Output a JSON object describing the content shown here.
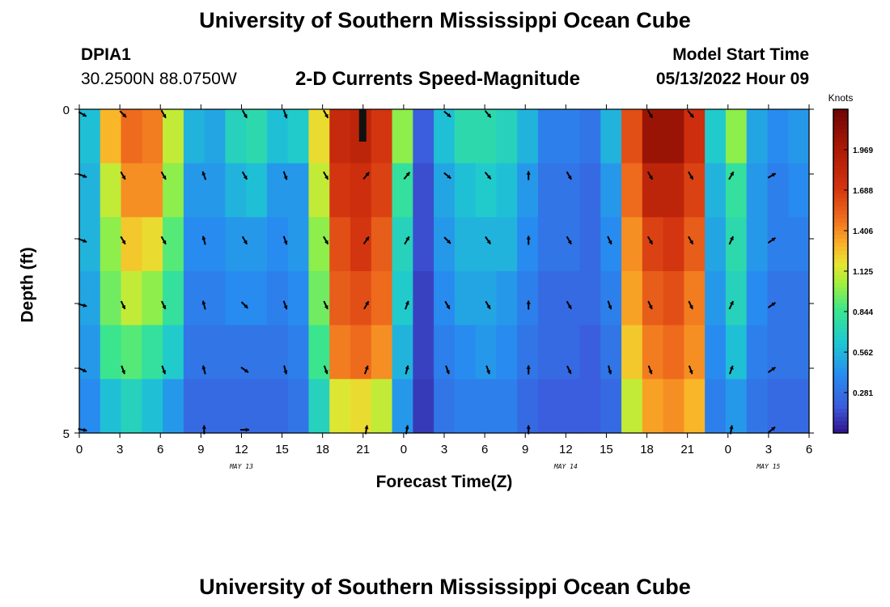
{
  "header": {
    "title": "University of Southern Mississippi Ocean Cube",
    "station_id": "DPIA1",
    "coords": "30.2500N  88.0750W",
    "subtitle": "2-D Currents Speed-Magnitude",
    "model_start_label": "Model Start Time",
    "model_start_value": "05/13/2022 Hour 09",
    "footer_title": "University of Southern Mississippi Ocean Cube"
  },
  "chart_data": {
    "type": "heatmap",
    "title": "2-D Currents Speed-Magnitude",
    "xlabel": "Forecast Time(Z)",
    "ylabel": "Depth (ft)",
    "y_ticks": [
      "0",
      "5"
    ],
    "y_range": [
      0,
      5
    ],
    "x_tick_labels": [
      "0",
      "3",
      "6",
      "9",
      "12",
      "15",
      "18",
      "21",
      "0",
      "3",
      "6",
      "9",
      "12",
      "15",
      "18",
      "21",
      "0",
      "3",
      "6"
    ],
    "date_labels": [
      {
        "text": "MAY 13",
        "at_tick": 4
      },
      {
        "text": "MAY 14",
        "at_tick": 12
      },
      {
        "text": "MAY 15",
        "at_tick": 17
      }
    ],
    "colorbar": {
      "unit": "Knots",
      "range": [
        0.0,
        2.25
      ],
      "ticks": [
        "1.969",
        "1.688",
        "1.406",
        "1.125",
        "0.844",
        "0.562",
        "0.281"
      ],
      "tick_values": [
        1.969,
        1.688,
        1.406,
        1.125,
        0.844,
        0.562,
        0.281
      ]
    },
    "depth_layers": 6,
    "speed_knots_by_column_surface_to_bottom": [
      [
        0.6,
        0.55,
        0.55,
        0.5,
        0.45,
        0.4
      ],
      [
        1.3,
        1.1,
        1.0,
        0.95,
        0.85,
        0.6
      ],
      [
        1.5,
        1.4,
        1.25,
        1.1,
        0.9,
        0.7
      ],
      [
        1.45,
        1.4,
        1.2,
        1.0,
        0.8,
        0.6
      ],
      [
        1.1,
        1.0,
        0.9,
        0.8,
        0.65,
        0.45
      ],
      [
        0.55,
        0.45,
        0.4,
        0.35,
        0.3,
        0.25
      ],
      [
        0.5,
        0.45,
        0.4,
        0.35,
        0.3,
        0.25
      ],
      [
        0.7,
        0.55,
        0.45,
        0.4,
        0.3,
        0.25
      ],
      [
        0.75,
        0.6,
        0.45,
        0.4,
        0.3,
        0.25
      ],
      [
        0.6,
        0.45,
        0.4,
        0.35,
        0.3,
        0.25
      ],
      [
        0.65,
        0.45,
        0.45,
        0.4,
        0.35,
        0.3
      ],
      [
        1.2,
        1.1,
        1.0,
        0.95,
        0.85,
        0.7
      ],
      [
        1.8,
        1.7,
        1.6,
        1.55,
        1.45,
        1.15
      ],
      [
        1.85,
        1.75,
        1.7,
        1.6,
        1.5,
        1.2
      ],
      [
        1.7,
        1.65,
        1.55,
        1.5,
        1.4,
        1.1
      ],
      [
        1.0,
        0.8,
        0.7,
        0.65,
        0.55,
        0.45
      ],
      [
        0.2,
        0.15,
        0.15,
        0.12,
        0.12,
        0.1
      ],
      [
        0.6,
        0.5,
        0.45,
        0.4,
        0.35,
        0.3
      ],
      [
        0.75,
        0.6,
        0.55,
        0.5,
        0.4,
        0.35
      ],
      [
        0.75,
        0.65,
        0.55,
        0.5,
        0.45,
        0.35
      ],
      [
        0.7,
        0.6,
        0.55,
        0.45,
        0.4,
        0.35
      ],
      [
        0.55,
        0.45,
        0.4,
        0.35,
        0.3,
        0.25
      ],
      [
        0.35,
        0.3,
        0.3,
        0.25,
        0.25,
        0.2
      ],
      [
        0.35,
        0.3,
        0.3,
        0.25,
        0.25,
        0.2
      ],
      [
        0.3,
        0.25,
        0.25,
        0.25,
        0.2,
        0.2
      ],
      [
        0.55,
        0.45,
        0.4,
        0.35,
        0.3,
        0.25
      ],
      [
        1.6,
        1.5,
        1.4,
        1.35,
        1.25,
        1.1
      ],
      [
        2.05,
        1.85,
        1.65,
        1.55,
        1.45,
        1.35
      ],
      [
        2.05,
        1.85,
        1.7,
        1.6,
        1.5,
        1.4
      ],
      [
        1.75,
        1.65,
        1.55,
        1.45,
        1.4,
        1.3
      ],
      [
        0.65,
        0.55,
        0.5,
        0.45,
        0.4,
        0.35
      ],
      [
        1.0,
        0.8,
        0.75,
        0.7,
        0.6,
        0.45
      ],
      [
        0.5,
        0.45,
        0.45,
        0.4,
        0.35,
        0.3
      ],
      [
        0.4,
        0.35,
        0.35,
        0.3,
        0.3,
        0.25
      ],
      [
        0.45,
        0.4,
        0.35,
        0.3,
        0.3,
        0.25
      ]
    ],
    "arrows_direction_deg": [
      {
        "tick": 0,
        "depth_rows": [
          0,
          1,
          2,
          3,
          4,
          5
        ],
        "deg": [
          120,
          110,
          110,
          105,
          115,
          100
        ]
      },
      {
        "tick": 1,
        "depth_rows": [
          0,
          1,
          2,
          3,
          4
        ],
        "deg": [
          135,
          150,
          150,
          155,
          160
        ]
      },
      {
        "tick": 2,
        "depth_rows": [
          0,
          1,
          2,
          3,
          4
        ],
        "deg": [
          150,
          150,
          150,
          155,
          160
        ]
      },
      {
        "tick": 3,
        "depth_rows": [
          1,
          2,
          3,
          4,
          5
        ],
        "deg": [
          -20,
          -15,
          -15,
          -15,
          0
        ]
      },
      {
        "tick": 4,
        "depth_rows": [
          0,
          1,
          2,
          3,
          4,
          5
        ],
        "deg": [
          150,
          150,
          150,
          135,
          125,
          90
        ]
      },
      {
        "tick": 5,
        "depth_rows": [
          0,
          1,
          2,
          3,
          4
        ],
        "deg": [
          160,
          160,
          160,
          160,
          165
        ]
      },
      {
        "tick": 6,
        "depth_rows": [
          0,
          1,
          2,
          3,
          4
        ],
        "deg": [
          150,
          150,
          150,
          155,
          160
        ]
      },
      {
        "tick": 7,
        "depth_rows": [
          1,
          2,
          3,
          4,
          5
        ],
        "deg": [
          40,
          35,
          30,
          20,
          10
        ]
      },
      {
        "tick": 8,
        "depth_rows": [
          1,
          2,
          3,
          4,
          5
        ],
        "deg": [
          40,
          30,
          20,
          15,
          10
        ]
      },
      {
        "tick": 9,
        "depth_rows": [
          0,
          1,
          2,
          3,
          4
        ],
        "deg": [
          130,
          130,
          135,
          150,
          160
        ]
      },
      {
        "tick": 10,
        "depth_rows": [
          0,
          1,
          2,
          3,
          4
        ],
        "deg": [
          140,
          140,
          145,
          150,
          160
        ]
      },
      {
        "tick": 11,
        "depth_rows": [
          1,
          2,
          3,
          4,
          5
        ],
        "deg": [
          0,
          0,
          0,
          0,
          0
        ]
      },
      {
        "tick": 12,
        "depth_rows": [
          1,
          2,
          3,
          4
        ],
        "deg": [
          150,
          150,
          150,
          155
        ]
      },
      {
        "tick": 13,
        "depth_rows": [
          2,
          3,
          4
        ],
        "deg": [
          155,
          160,
          165
        ]
      },
      {
        "tick": 14,
        "depth_rows": [
          0,
          1,
          2,
          3,
          4
        ],
        "deg": [
          150,
          150,
          150,
          155,
          160
        ]
      },
      {
        "tick": 15,
        "depth_rows": [
          0,
          1,
          2,
          3,
          4
        ],
        "deg": [
          140,
          150,
          150,
          155,
          160
        ]
      },
      {
        "tick": 16,
        "depth_rows": [
          1,
          2,
          3,
          4,
          5
        ],
        "deg": [
          30,
          25,
          25,
          20,
          10
        ]
      },
      {
        "tick": 17,
        "depth_rows": [
          1,
          2,
          3,
          4,
          5
        ],
        "deg": [
          60,
          55,
          55,
          55,
          50
        ]
      }
    ]
  }
}
